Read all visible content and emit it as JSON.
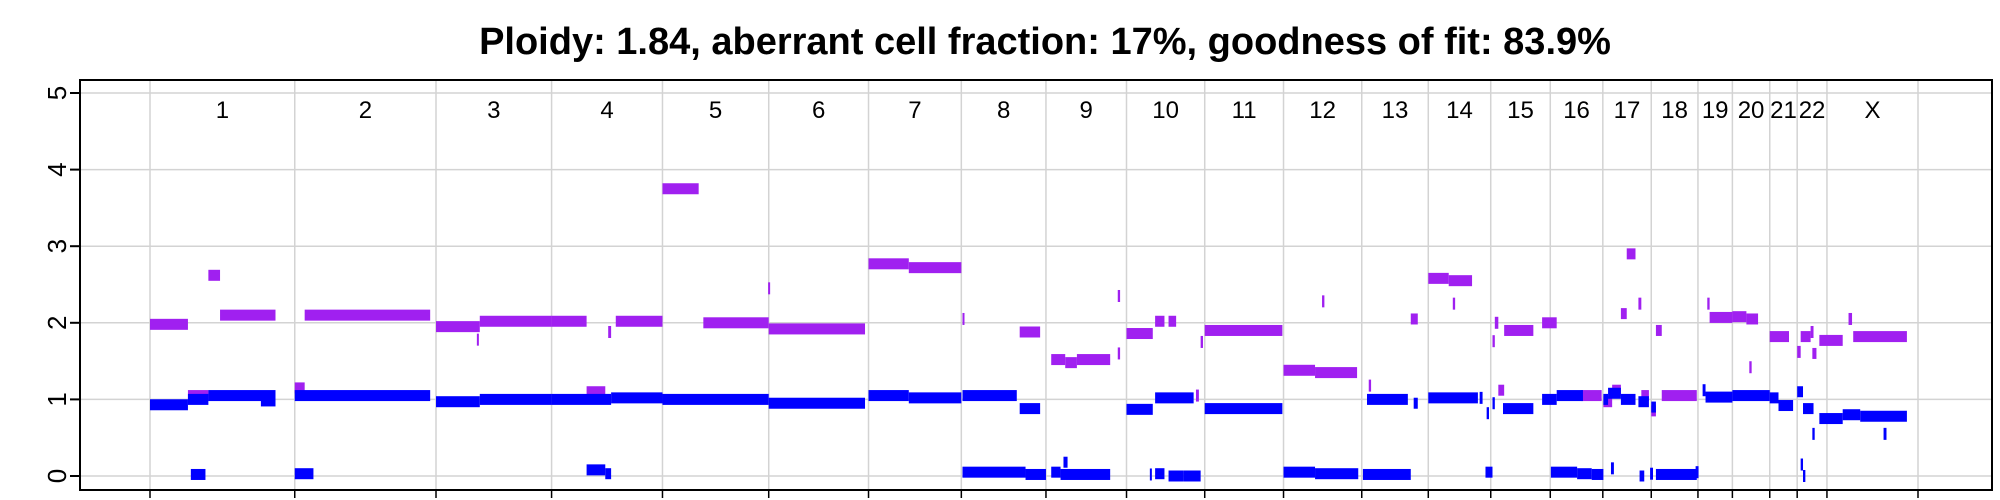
{
  "chart_data": {
    "type": "scatter",
    "title": "Ploidy: 1.84, aberrant cell fraction: 17%, goodness of fit: 83.9%",
    "xlabel": "",
    "ylabel": "",
    "ylim": [
      0,
      5
    ],
    "y_ticks": [
      "0",
      "1",
      "2",
      "3",
      "4",
      "5"
    ],
    "grid": true,
    "colors": {
      "total": "#a020f0",
      "minor": "#0000ff",
      "grid": "#d3d3d3"
    },
    "chromosomes": [
      {
        "name": "1",
        "start": 0,
        "end": 248
      },
      {
        "name": "2",
        "start": 248,
        "end": 490
      },
      {
        "name": "3",
        "start": 490,
        "end": 688
      },
      {
        "name": "4",
        "start": 688,
        "end": 878
      },
      {
        "name": "5",
        "start": 878,
        "end": 1060
      },
      {
        "name": "6",
        "start": 1060,
        "end": 1231
      },
      {
        "name": "7",
        "start": 1231,
        "end": 1390
      },
      {
        "name": "8",
        "start": 1390,
        "end": 1535
      },
      {
        "name": "9",
        "start": 1535,
        "end": 1673
      },
      {
        "name": "10",
        "start": 1673,
        "end": 1807
      },
      {
        "name": "11",
        "start": 1807,
        "end": 1942
      },
      {
        "name": "12",
        "start": 1942,
        "end": 2076
      },
      {
        "name": "13",
        "start": 2076,
        "end": 2190
      },
      {
        "name": "14",
        "start": 2190,
        "end": 2297
      },
      {
        "name": "15",
        "start": 2297,
        "end": 2399
      },
      {
        "name": "16",
        "start": 2399,
        "end": 2489
      },
      {
        "name": "17",
        "start": 2489,
        "end": 2572
      },
      {
        "name": "18",
        "start": 2572,
        "end": 2652
      },
      {
        "name": "19",
        "start": 2652,
        "end": 2711
      },
      {
        "name": "20",
        "start": 2711,
        "end": 2775
      },
      {
        "name": "21",
        "start": 2775,
        "end": 2822
      },
      {
        "name": "22",
        "start": 2822,
        "end": 2873
      },
      {
        "name": "X",
        "start": 2873,
        "end": 3029
      }
    ],
    "series": [
      {
        "role": "total copy number",
        "segments": [
          [
            0,
            65,
            1.98
          ],
          [
            65,
            100,
            1.05
          ],
          [
            100,
            120,
            2.62
          ],
          [
            120,
            215,
            2.1
          ],
          [
            248,
            265,
            1.15
          ],
          [
            265,
            480,
            2.1
          ],
          [
            490,
            565,
            1.95
          ],
          [
            560,
            563,
            1.78
          ],
          [
            565,
            688,
            2.02
          ],
          [
            688,
            748,
            2.02
          ],
          [
            748,
            780,
            1.1
          ],
          [
            785,
            790,
            1.88
          ],
          [
            798,
            878,
            2.02
          ],
          [
            878,
            940,
            3.75
          ],
          [
            948,
            1060,
            2.0
          ],
          [
            1059,
            1062,
            2.45
          ],
          [
            1060,
            1225,
            1.92
          ],
          [
            1231,
            1300,
            2.77
          ],
          [
            1300,
            1390,
            2.72
          ],
          [
            1392,
            1395,
            2.05
          ],
          [
            1490,
            1525,
            1.88
          ],
          [
            1544,
            1568,
            1.52
          ],
          [
            1568,
            1588,
            1.48
          ],
          [
            1588,
            1645,
            1.52
          ],
          [
            1658,
            1662,
            2.35
          ],
          [
            1658,
            1662,
            1.6
          ],
          [
            1673,
            1718,
            1.86
          ],
          [
            1722,
            1738,
            2.02
          ],
          [
            1745,
            1758,
            2.02
          ],
          [
            1792,
            1797,
            1.05
          ],
          [
            1800,
            1804,
            1.75
          ],
          [
            1807,
            1940,
            1.9
          ],
          [
            1942,
            1996,
            1.38
          ],
          [
            1996,
            2068,
            1.35
          ],
          [
            2008,
            2012,
            2.28
          ],
          [
            2088,
            2092,
            1.18
          ],
          [
            2160,
            2172,
            2.05
          ],
          [
            2190,
            2225,
            2.58
          ],
          [
            2225,
            2265,
            2.55
          ],
          [
            2232,
            2236,
            2.25
          ],
          [
            2300,
            2304,
            1.76
          ],
          [
            2304,
            2310,
            2.0
          ],
          [
            2310,
            2320,
            1.12
          ],
          [
            2320,
            2370,
            1.9
          ],
          [
            2385,
            2410,
            2.0
          ],
          [
            2452,
            2487,
            1.05
          ],
          [
            2490,
            2505,
            0.97
          ],
          [
            2505,
            2520,
            1.12
          ],
          [
            2520,
            2530,
            2.12
          ],
          [
            2530,
            2545,
            2.9
          ],
          [
            2550,
            2555,
            2.25
          ],
          [
            2555,
            2568,
            1.05
          ],
          [
            2572,
            2580,
            0.85
          ],
          [
            2580,
            2590,
            1.9
          ],
          [
            2590,
            2650,
            1.05
          ],
          [
            2668,
            2672,
            2.25
          ],
          [
            2672,
            2711,
            2.07
          ],
          [
            2711,
            2735,
            2.08
          ],
          [
            2735,
            2755,
            2.05
          ],
          [
            2740,
            2744,
            1.42
          ],
          [
            2775,
            2808,
            1.82
          ],
          [
            2822,
            2828,
            1.62
          ],
          [
            2828,
            2845,
            1.82
          ],
          [
            2845,
            2850,
            1.88
          ],
          [
            2848,
            2855,
            1.6
          ],
          [
            2860,
            2900,
            1.77
          ],
          [
            2910,
            2916,
            2.05
          ],
          [
            2918,
            3010,
            1.82
          ]
        ]
      },
      {
        "role": "minor copy number",
        "segments": [
          [
            0,
            65,
            0.93
          ],
          [
            65,
            100,
            1.0
          ],
          [
            100,
            215,
            1.05
          ],
          [
            248,
            480,
            1.05
          ],
          [
            490,
            565,
            0.97
          ],
          [
            565,
            688,
            1.0
          ],
          [
            688,
            790,
            1.0
          ],
          [
            790,
            878,
            1.02
          ],
          [
            878,
            1060,
            1.0
          ],
          [
            1060,
            1225,
            0.95
          ],
          [
            1231,
            1300,
            1.05
          ],
          [
            1300,
            1390,
            1.02
          ],
          [
            1392,
            1485,
            1.05
          ],
          [
            1490,
            1525,
            0.88
          ],
          [
            1673,
            1718,
            0.87
          ],
          [
            1722,
            1788,
            1.02
          ],
          [
            1807,
            1940,
            0.88
          ],
          [
            2085,
            2155,
            1.0
          ],
          [
            2165,
            2172,
            0.95
          ],
          [
            2190,
            2275,
            1.02
          ],
          [
            2278,
            2283,
            1.02
          ],
          [
            2290,
            2294,
            0.82
          ],
          [
            2300,
            2304,
            0.95
          ],
          [
            2318,
            2370,
            0.88
          ],
          [
            2385,
            2410,
            1.0
          ],
          [
            2410,
            2455,
            1.05
          ],
          [
            2490,
            2498,
            1.0
          ],
          [
            2498,
            2520,
            1.08
          ],
          [
            2520,
            2545,
            1.0
          ],
          [
            2550,
            2568,
            0.97
          ],
          [
            2572,
            2580,
            0.9
          ],
          [
            2660,
            2665,
            1.12
          ],
          [
            2665,
            2711,
            1.03
          ],
          [
            2711,
            2775,
            1.05
          ],
          [
            2775,
            2790,
            1.02
          ],
          [
            2790,
            2815,
            0.92
          ],
          [
            2822,
            2832,
            1.1
          ],
          [
            2832,
            2850,
            0.88
          ],
          [
            2860,
            2900,
            0.75
          ],
          [
            2900,
            2930,
            0.8
          ],
          [
            2930,
            3010,
            0.78
          ],
          [
            2970,
            2975,
            0.55
          ],
          [
            2848,
            2852,
            0.55
          ],
          [
            190,
            215,
            0.98
          ],
          [
            1500,
            1535,
            0.02
          ],
          [
            1392,
            1500,
            0.05
          ],
          [
            1544,
            1560,
            0.05
          ],
          [
            1560,
            1645,
            0.02
          ],
          [
            1565,
            1572,
            0.18
          ],
          [
            1713,
            1716,
            0.02
          ],
          [
            1722,
            1738,
            0.03
          ],
          [
            1745,
            1770,
            0.0
          ],
          [
            1770,
            1800,
            0.0
          ],
          [
            1942,
            1996,
            0.05
          ],
          [
            1996,
            2070,
            0.03
          ],
          [
            2078,
            2160,
            0.02
          ],
          [
            2288,
            2300,
            0.05
          ],
          [
            2400,
            2445,
            0.05
          ],
          [
            2445,
            2470,
            0.03
          ],
          [
            2470,
            2490,
            0.02
          ],
          [
            2503,
            2508,
            0.1
          ],
          [
            2552,
            2560,
            0.0
          ],
          [
            2570,
            2575,
            0.03
          ],
          [
            2580,
            2650,
            0.02
          ],
          [
            2648,
            2653,
            0.05
          ],
          [
            2828,
            2832,
            0.15
          ],
          [
            2832,
            2836,
            0.0
          ],
          [
            70,
            95,
            0.02
          ],
          [
            248,
            280,
            0.03
          ],
          [
            748,
            780,
            0.08
          ],
          [
            780,
            790,
            0.03
          ]
        ]
      }
    ]
  }
}
